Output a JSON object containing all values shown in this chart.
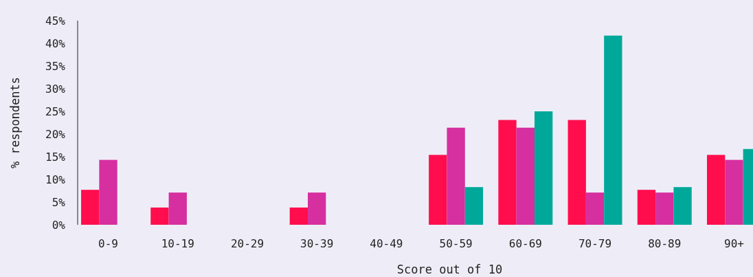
{
  "chart_data": {
    "type": "bar",
    "xlabel": "Score out of 10",
    "ylabel": "% respondents",
    "categories": [
      "0-9",
      "10-19",
      "20-29",
      "30-39",
      "40-49",
      "50-59",
      "60-69",
      "70-79",
      "80-89",
      "90+"
    ],
    "series": [
      {
        "color": "#ff0d4d",
        "values": [
          7.7,
          3.8,
          0,
          3.8,
          0,
          15.4,
          23.1,
          23.1,
          7.7,
          15.4
        ]
      },
      {
        "color": "#d62f9f",
        "values": [
          14.3,
          7.1,
          0,
          7.1,
          0,
          21.4,
          21.4,
          7.1,
          7.1,
          14.3
        ]
      },
      {
        "color": "#00a89a",
        "values": [
          0,
          0,
          0,
          0,
          0,
          8.3,
          25,
          41.7,
          8.3,
          16.7
        ]
      }
    ],
    "ylim": [
      0,
      45
    ],
    "yticks": [
      {
        "value": 0,
        "label": "0%"
      },
      {
        "value": 5,
        "label": "5%"
      },
      {
        "value": 10,
        "label": "10%"
      },
      {
        "value": 15,
        "label": "15%"
      },
      {
        "value": 20,
        "label": "20%"
      },
      {
        "value": 25,
        "label": "25%"
      },
      {
        "value": 30,
        "label": "30%"
      },
      {
        "value": 35,
        "label": "35%"
      },
      {
        "value": 40,
        "label": "40%"
      },
      {
        "value": 45,
        "label": "45%"
      }
    ],
    "grid": false
  }
}
